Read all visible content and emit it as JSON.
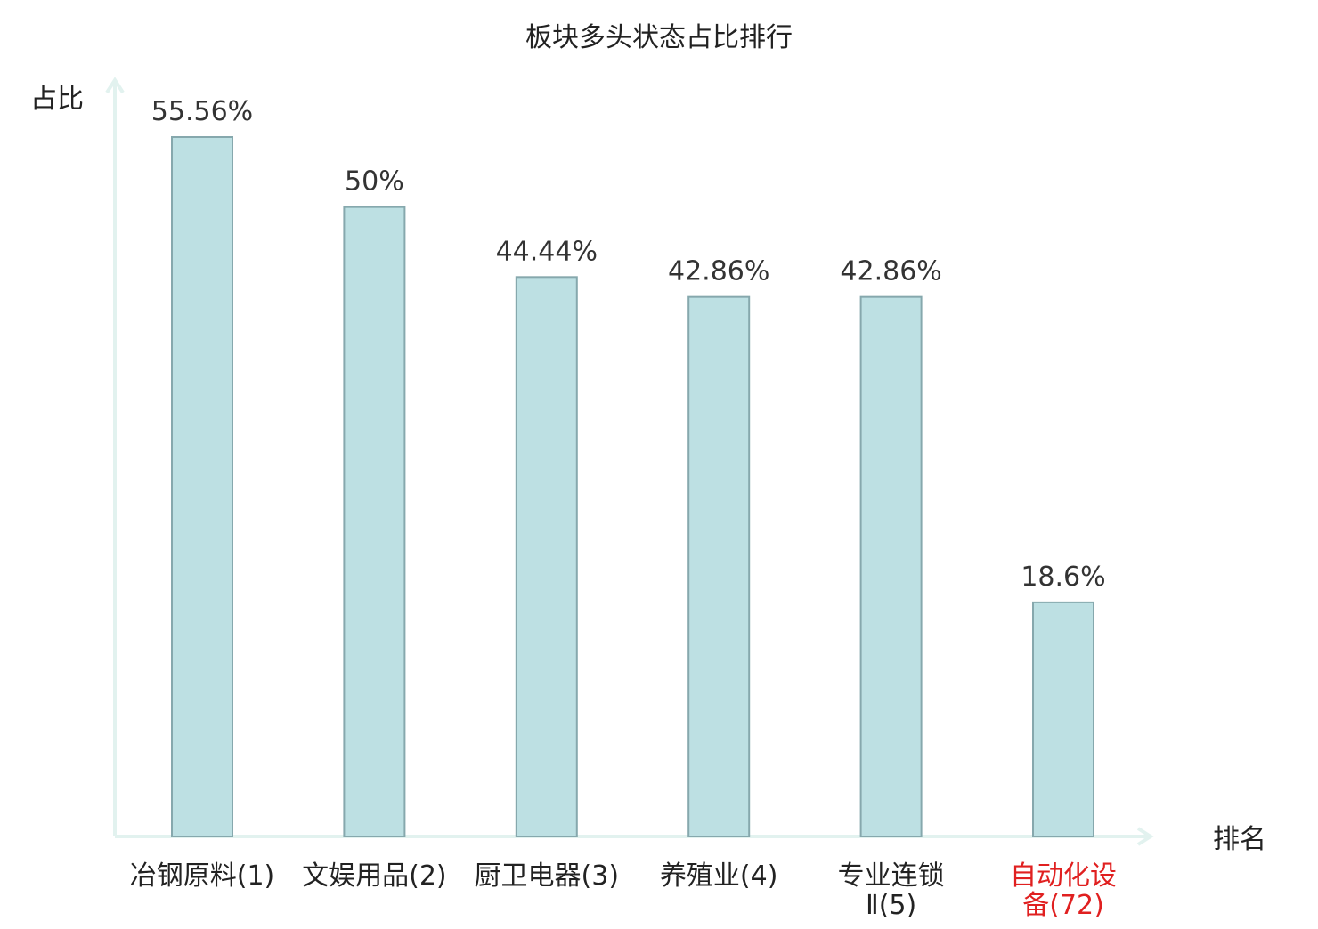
{
  "chart_data": {
    "type": "bar",
    "title": "板块多头状态占比排行",
    "ylabel": "占比",
    "xlabel": "排名",
    "categories": [
      [
        "冶钢原料(1)"
      ],
      [
        "文娱用品(2)"
      ],
      [
        "厨卫电器(3)"
      ],
      [
        "养殖业(4)"
      ],
      [
        "专业连锁",
        "Ⅱ(5)"
      ],
      [
        "自动化设",
        "备(72)"
      ]
    ],
    "values": [
      55.56,
      50,
      44.44,
      42.86,
      42.86,
      18.6
    ],
    "value_labels": [
      "55.56%",
      "50%",
      "44.44%",
      "42.86%",
      "42.86%",
      "18.6%"
    ],
    "highlight_index": 5,
    "ylim": [
      0,
      60
    ],
    "grid": false,
    "colors": {
      "bar_fill": "#bde0e3",
      "bar_stroke": "#86a8ad",
      "axis": "#e2f2ef",
      "text": "#333333",
      "highlight_text": "#e02020"
    }
  }
}
